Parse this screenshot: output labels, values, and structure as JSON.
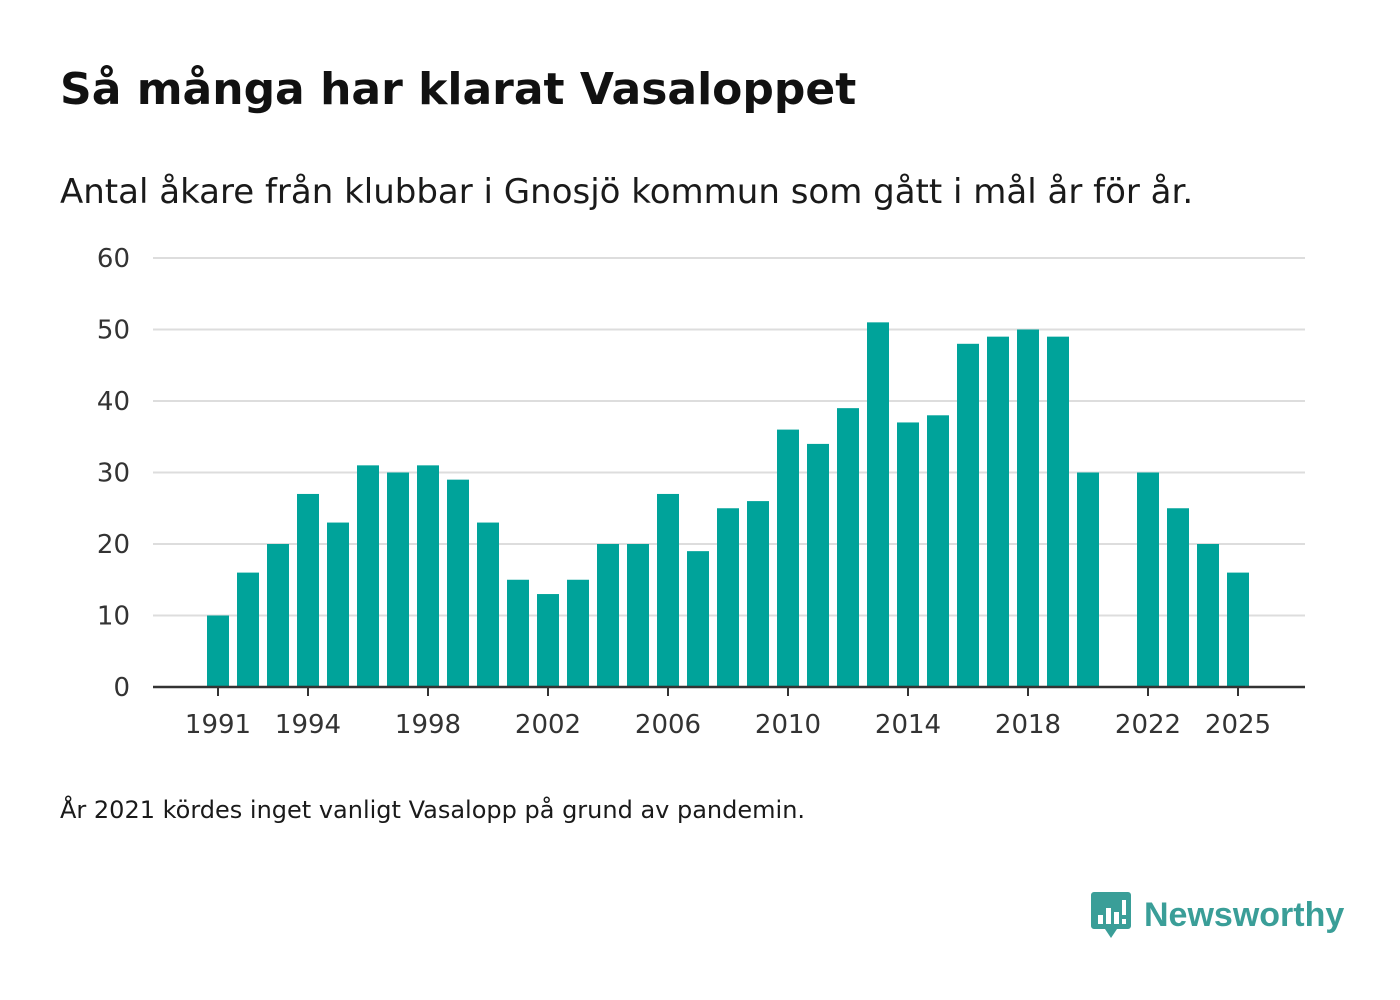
{
  "chart_data": {
    "type": "bar",
    "title": "Så många har klarat Vasaloppet",
    "subtitle": "Antal åkare från klubbar i Gnosjö kommun som gått i mål år för år.",
    "xlabel": "",
    "ylabel": "",
    "ylim": [
      0,
      60
    ],
    "yticks": [
      0,
      10,
      20,
      30,
      40,
      50,
      60
    ],
    "grid": true,
    "bar_color": "#00a39a",
    "axis_color": "#333333",
    "grid_color": "#dddddd",
    "x": [
      1991,
      1992,
      1993,
      1994,
      1995,
      1996,
      1997,
      1998,
      1999,
      2000,
      2001,
      2002,
      2003,
      2004,
      2005,
      2006,
      2007,
      2008,
      2009,
      2010,
      2011,
      2012,
      2013,
      2014,
      2015,
      2016,
      2017,
      2018,
      2019,
      2020,
      2021,
      2022,
      2023,
      2024,
      2025
    ],
    "values": [
      10,
      16,
      20,
      27,
      23,
      31,
      30,
      31,
      29,
      23,
      15,
      13,
      15,
      20,
      20,
      27,
      19,
      25,
      26,
      36,
      34,
      39,
      51,
      37,
      38,
      48,
      49,
      50,
      49,
      30,
      null,
      30,
      25,
      20,
      16
    ],
    "xticks": [
      "1991",
      "1994",
      "1998",
      "2002",
      "2006",
      "2010",
      "2014",
      "2018",
      "2022",
      "2025"
    ]
  },
  "note": "År 2021 kördes inget vanligt Vasalopp på grund av pandemin.",
  "brand": {
    "name": "Newsworthy",
    "icon": "newsworthy-logo-icon",
    "color": "#3a9e98"
  }
}
